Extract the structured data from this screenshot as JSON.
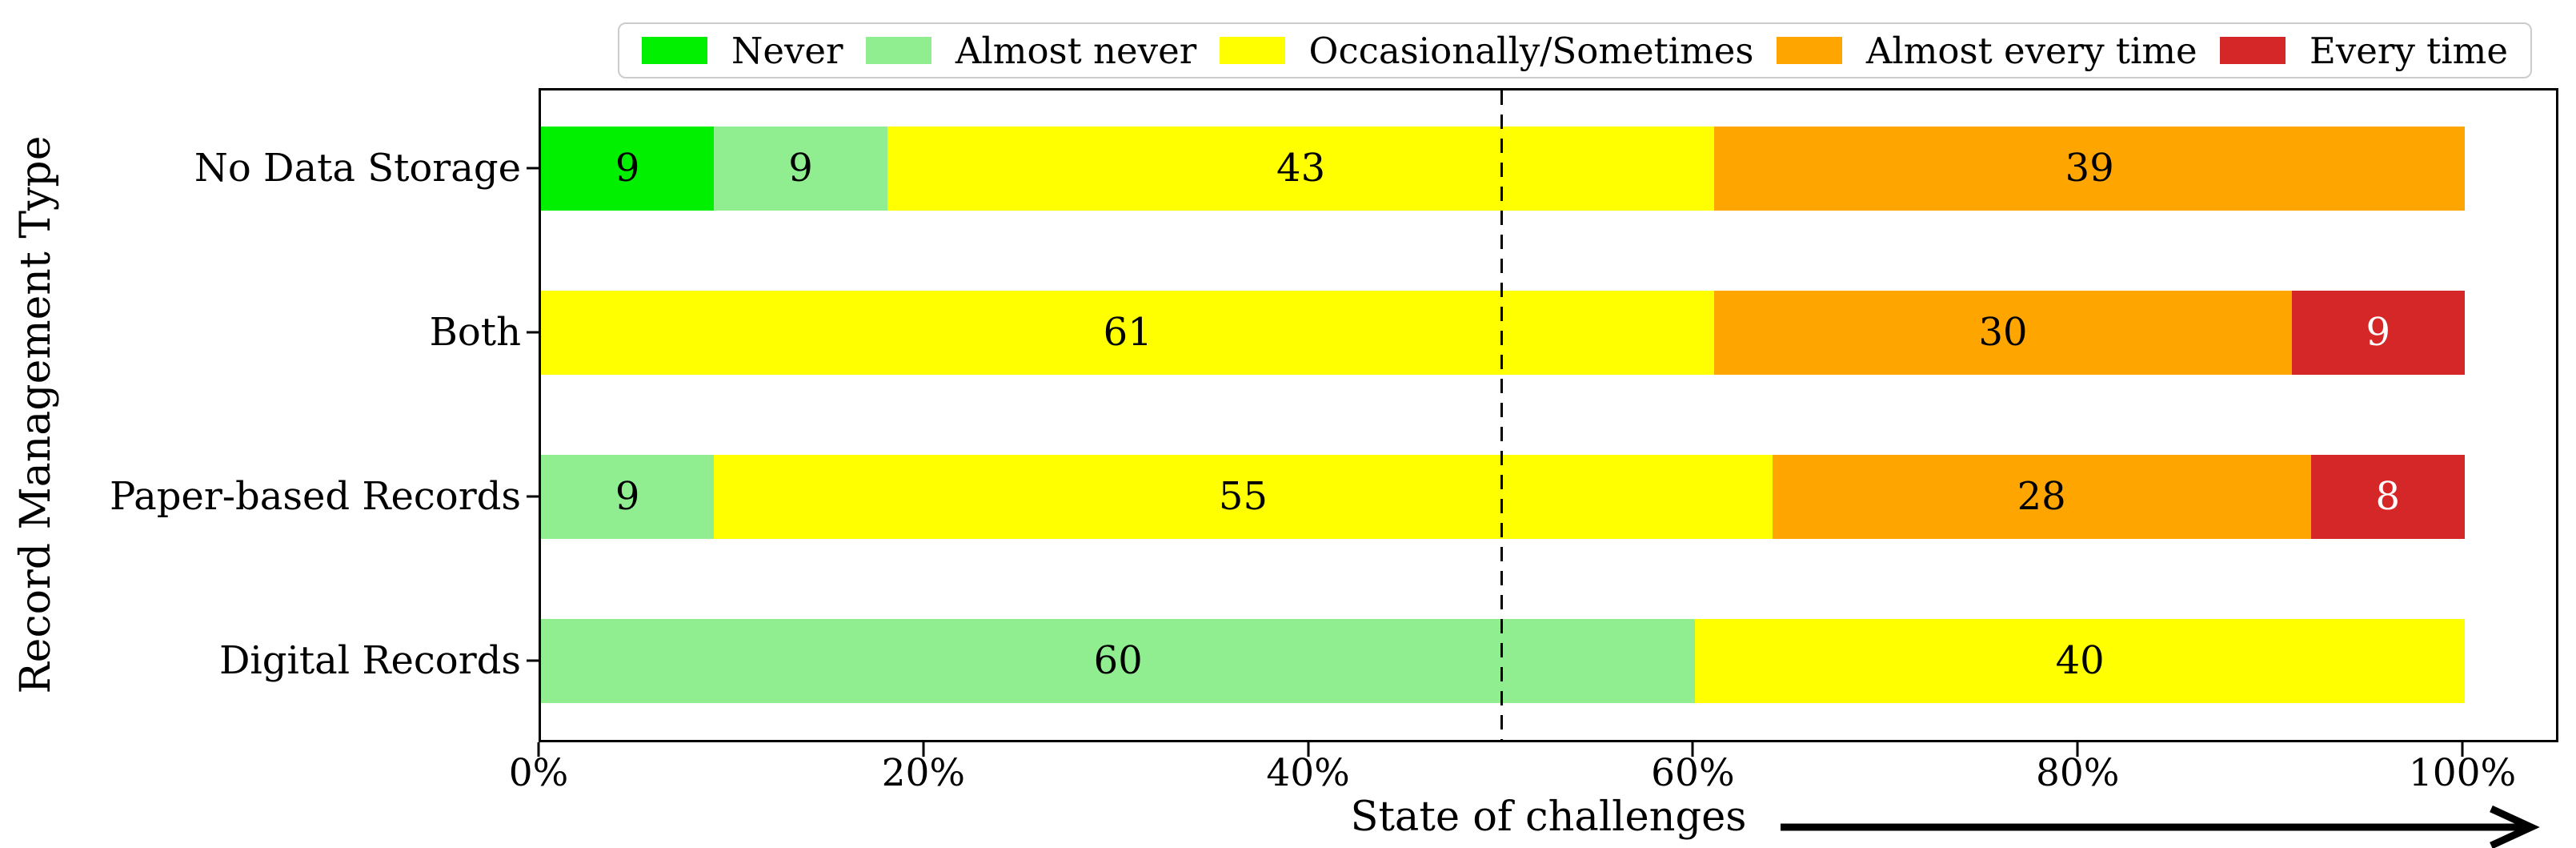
{
  "chart_data": {
    "type": "bar",
    "orientation": "horizontal",
    "stacked": true,
    "title": "",
    "xlabel": "State of challenges",
    "ylabel": "Record Management Type",
    "categories": [
      "No Data Storage",
      "Both",
      "Paper-based Records",
      "Digital Records"
    ],
    "series": [
      {
        "name": "Never",
        "color": "#00f000",
        "value_color": "#000000",
        "values": [
          9,
          0,
          0,
          0
        ]
      },
      {
        "name": "Almost never",
        "color": "#90ee90",
        "value_color": "#000000",
        "values": [
          9,
          0,
          9,
          60
        ]
      },
      {
        "name": "Occasionally/Sometimes",
        "color": "#ffff00",
        "value_color": "#000000",
        "values": [
          43,
          61,
          55,
          40
        ]
      },
      {
        "name": "Almost every time",
        "color": "#ffa500",
        "value_color": "#000000",
        "values": [
          39,
          30,
          28,
          0
        ]
      },
      {
        "name": "Every time",
        "color": "#d62728",
        "value_color": "#ffffff",
        "values": [
          0,
          9,
          8,
          0
        ]
      }
    ],
    "x_ticks": [
      {
        "value": 0,
        "label": "0%"
      },
      {
        "value": 20,
        "label": "20%"
      },
      {
        "value": 40,
        "label": "40%"
      },
      {
        "value": 60,
        "label": "60%"
      },
      {
        "value": 80,
        "label": "80%"
      },
      {
        "value": 100,
        "label": "100%"
      }
    ],
    "xlim": [
      0,
      105
    ],
    "reference_line_pct": 50,
    "grid": false,
    "legend_position": "top",
    "axis_arrow": "right"
  },
  "legend": {
    "items": [
      {
        "label": "Never",
        "color": "#00f000"
      },
      {
        "label": "Almost never",
        "color": "#90ee90"
      },
      {
        "label": "Occasionally/Sometimes",
        "color": "#ffff00"
      },
      {
        "label": "Almost every time",
        "color": "#ffa500"
      },
      {
        "label": "Every time",
        "color": "#d62728"
      }
    ]
  },
  "colors": {
    "axes_border": "#000000",
    "legend_border": "#cccccc",
    "reference_line": "#000000",
    "background": "#ffffff"
  }
}
